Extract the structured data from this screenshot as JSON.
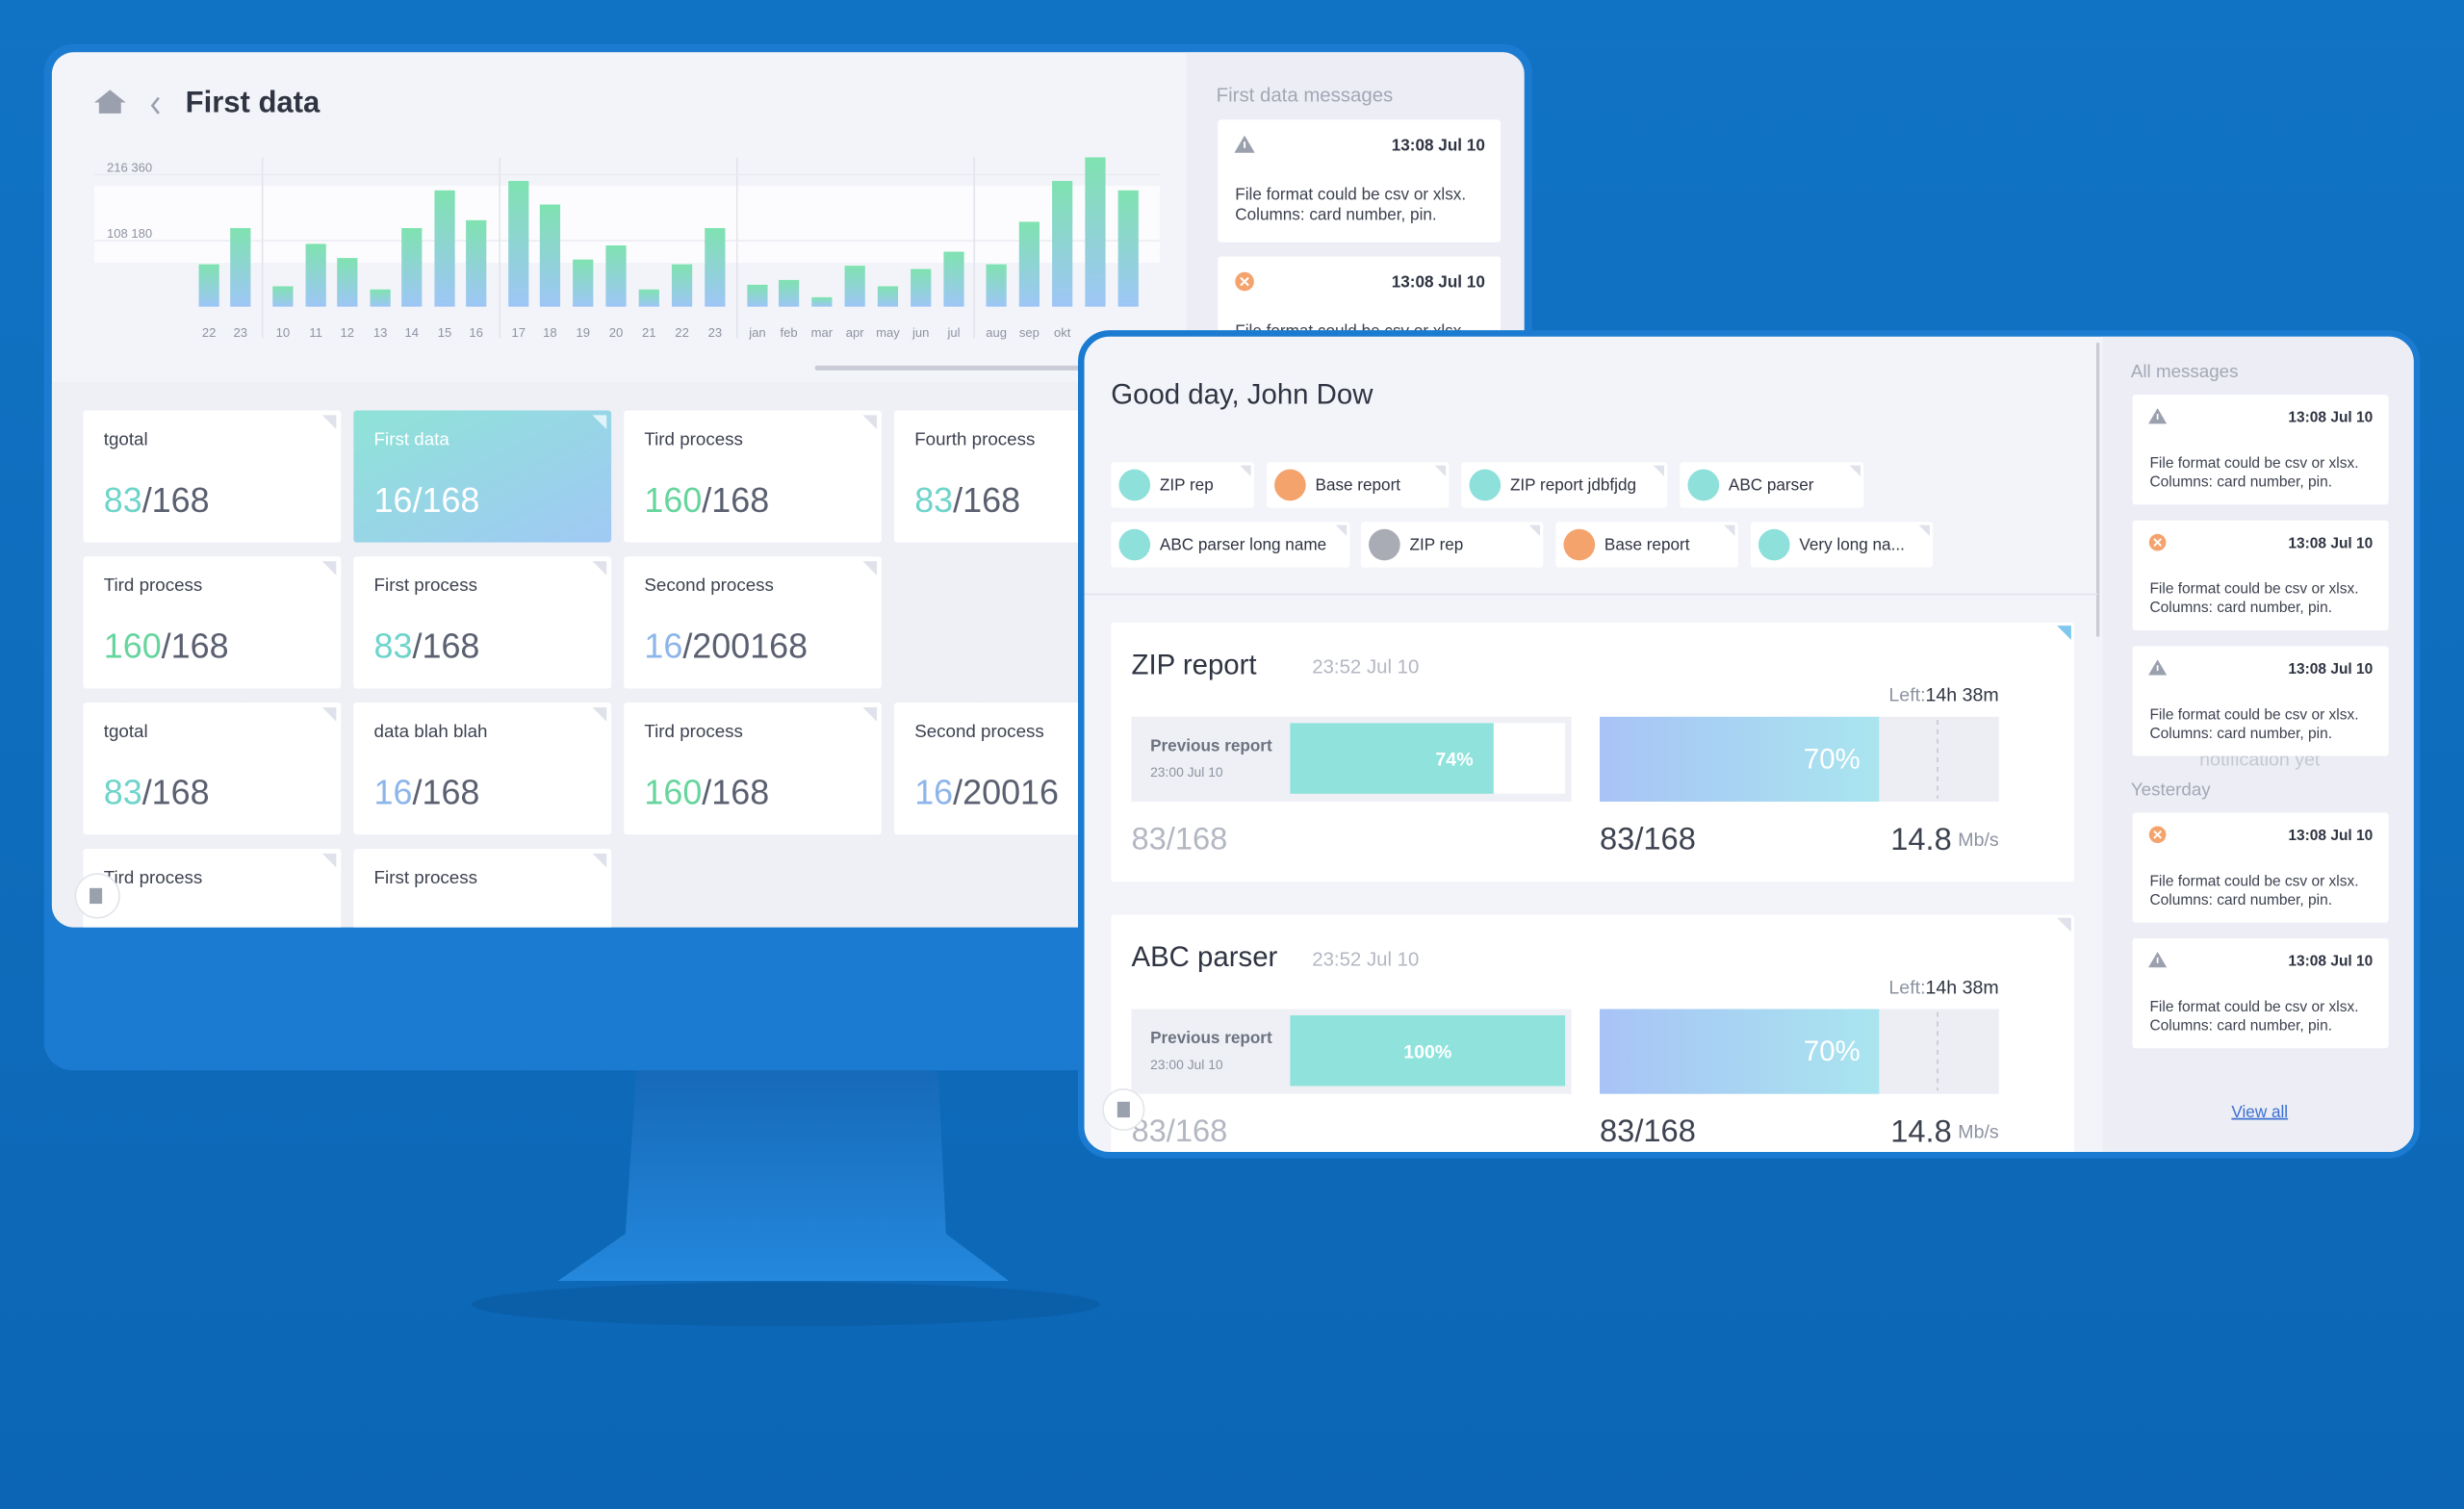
{
  "header": {
    "title": "First data"
  },
  "chart_data": {
    "type": "bar",
    "categories": [
      "22",
      "23",
      "10",
      "11",
      "12",
      "13",
      "14",
      "15",
      "16",
      "17",
      "18",
      "19",
      "20",
      "21",
      "22",
      "23",
      "jan",
      "feb",
      "mar",
      "apr",
      "may",
      "jun",
      "jul",
      "aug",
      "sep",
      "okt",
      null,
      null
    ],
    "values": [
      69500,
      128800,
      33500,
      103000,
      79800,
      28300,
      128800,
      190600,
      141700,
      206000,
      167400,
      77300,
      100400,
      28300,
      69500,
      128800,
      36000,
      43800,
      15500,
      67000,
      33500,
      61800,
      90100,
      69500,
      139100,
      206000,
      244700,
      190600
    ],
    "ylim": [
      0,
      260000
    ],
    "yticks": [
      {
        "value": 108180,
        "label": "108 180"
      },
      {
        "value": 216360,
        "label": "216 360"
      }
    ],
    "grid": true
  },
  "tiles": [
    [
      {
        "title": "tgotal",
        "value": "83",
        "total": "/168",
        "accent": "#6fd4cb",
        "selected": false
      },
      {
        "title": "First data",
        "value": "16",
        "total": "/168",
        "accent": "#ffffff",
        "selected": true
      },
      {
        "title": "Tird process",
        "value": "160",
        "total": "/168",
        "accent": "#66d59d",
        "selected": false
      },
      {
        "title": "Fourth process",
        "value": "83",
        "total": "/168",
        "accent": "#6fd4cb",
        "selected": false
      }
    ],
    [
      {
        "title": "Tird process",
        "value": "160",
        "total": "/168",
        "accent": "#66d59d",
        "selected": false
      },
      {
        "title": "First process",
        "value": "83",
        "total": "/168",
        "accent": "#6fd4cb",
        "selected": false
      },
      {
        "title": "Second process",
        "value": "16",
        "total": "/200168",
        "accent": "#8db5ea",
        "selected": false
      }
    ],
    [
      {
        "title": "tgotal",
        "value": "83",
        "total": "/168",
        "accent": "#6fd4cb",
        "selected": false
      },
      {
        "title": "data blah blah",
        "value": "16",
        "total": "/168",
        "accent": "#8db5ea",
        "selected": false
      },
      {
        "title": "Tird process",
        "value": "160",
        "total": "/168",
        "accent": "#66d59d",
        "selected": false
      },
      {
        "title": "Second process",
        "value": "16",
        "total": "/20016",
        "accent": "#8db5ea",
        "selected": false
      }
    ],
    [
      {
        "title": "Tird process",
        "selected": false
      },
      {
        "title": "First process",
        "selected": false
      }
    ]
  ],
  "side_messages": {
    "title": "First data messages",
    "items": [
      {
        "type": "warning",
        "time": "13:08  Jul 10",
        "lines": [
          "File format could be csv or xlsx.",
          "Columns: card number, pin."
        ]
      },
      {
        "type": "error",
        "time": "13:08  Jul 10",
        "lines": [
          "File format could be csv or xlsx."
        ]
      }
    ]
  },
  "overlay": {
    "greeting": "Good day, John Dow",
    "chips": [
      {
        "label": "ZIP rep",
        "color": "#8ee0da"
      },
      {
        "label": "Base report",
        "color": "#f4a36d"
      },
      {
        "label": "ZIP report jdbfjdg",
        "color": "#8ee0da"
      },
      {
        "label": "ABC parser",
        "color": "#8ee0da"
      },
      {
        "label": "ABC parser long name",
        "color": "#8ee0da"
      },
      {
        "label": "ZIP rep",
        "color": "#a9abb5"
      },
      {
        "label": "Base report",
        "color": "#f4a36d"
      },
      {
        "label": "Very long na...",
        "color": "#8ee0da"
      }
    ],
    "reports": [
      {
        "title": "ZIP report",
        "time": "23:52 Jul 10",
        "left_label": "Left:",
        "left": "14h 38m",
        "previous_label": "Previous report",
        "previous_time": "23:00 Jul 10",
        "previous_progress": 74,
        "previous_progress_label": "74%",
        "progress": 70,
        "progress_label": "70%",
        "prev_count": "83/168",
        "count": "83/168",
        "speed": "14.8",
        "speed_unit": "Mb/s"
      },
      {
        "title": "ABC parser",
        "time": "23:52 Jul 10",
        "left_label": "Left:",
        "left": "14h 38m",
        "previous_label": "Previous report",
        "previous_time": "23:00 Jul 10",
        "previous_progress": 100,
        "previous_progress_label": "100%",
        "progress": 70,
        "progress_label": "70%",
        "prev_count": "83/168",
        "count": "83/168",
        "speed": "14.8",
        "speed_unit": "Mb/s"
      }
    ]
  },
  "messages": {
    "title": "All messages",
    "items": [
      {
        "type": "warning",
        "time": "13:08  Jul 10",
        "lines": [
          "File format could be csv or xlsx.",
          "Columns: card number, pin."
        ]
      },
      {
        "type": "error",
        "time": "13:08  Jul 10",
        "lines": [
          "File format could be csv or xlsx.",
          "Columns: card number, pin."
        ]
      },
      {
        "type": "warning",
        "time": "13:08  Jul 10",
        "lines": [
          "File format could be csv or xlsx.",
          "Columns: card number, pin."
        ]
      },
      {
        "type": "error",
        "time": "13:08  Jul 10",
        "lines": [
          "File format could be csv or xlsx.",
          "Columns: card number, pin."
        ]
      },
      {
        "type": "warning",
        "time": "13:08  Jul 10",
        "lines": [
          "File format could be csv or xlsx.",
          "Columns: card number, pin."
        ]
      }
    ],
    "note": "notification yet",
    "yesterday": "Yesterday",
    "view_all": "View all"
  }
}
